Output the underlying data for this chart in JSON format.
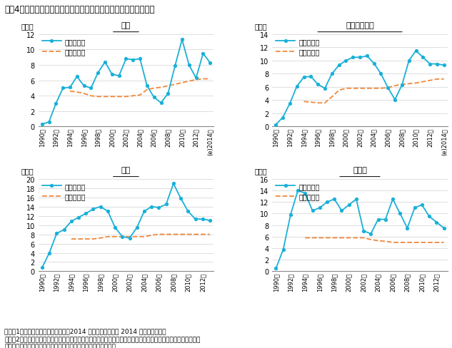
{
  "title": "図表4　大阪ビジネス地区におけるエリア別の空室率と自然空室率",
  "years_full": [
    1990,
    1991,
    1992,
    1993,
    1994,
    1995,
    1996,
    1997,
    1998,
    1999,
    2000,
    2001,
    2002,
    2003,
    2004,
    2005,
    2006,
    2007,
    2008,
    2009,
    2010,
    2011,
    2012,
    2013,
    2014
  ],
  "years_24": [
    1990,
    1991,
    1992,
    1993,
    1994,
    1995,
    1996,
    1997,
    1998,
    1999,
    2000,
    2001,
    2002,
    2003,
    2004,
    2005,
    2006,
    2007,
    2008,
    2009,
    2010,
    2011,
    2012,
    2013
  ],
  "x_label_years": [
    1990,
    1992,
    1994,
    1996,
    1998,
    2000,
    2002,
    2004,
    2006,
    2008,
    2010,
    2012,
    2014
  ],
  "x_labels_full": [
    "1990年",
    "1992年",
    "1994年",
    "1996年",
    "1998年",
    "2000年",
    "2002年",
    "2004年",
    "2006年",
    "2008年",
    "2010年",
    "2012年",
    "(e)2014年"
  ],
  "x_labels_24": [
    "1990年",
    "1992年",
    "1994年",
    "1996年",
    "1998年",
    "2000年",
    "2002年",
    "2004年",
    "2006年",
    "2008年",
    "2010年",
    "2012年"
  ],
  "umeda_avg": [
    0.3,
    0.6,
    3.0,
    5.0,
    5.1,
    6.5,
    5.3,
    5.0,
    7.0,
    8.4,
    6.8,
    6.6,
    8.8,
    8.7,
    8.8,
    5.3,
    3.8,
    3.1,
    4.3,
    7.9,
    11.3,
    8.0,
    6.3,
    9.5,
    8.3
  ],
  "umeda_nat": [
    null,
    null,
    null,
    null,
    4.6,
    4.5,
    4.3,
    4.0,
    3.9,
    3.9,
    3.9,
    3.9,
    3.9,
    4.0,
    4.1,
    4.8,
    5.0,
    5.1,
    5.3,
    5.5,
    5.7,
    5.9,
    6.1,
    6.2,
    6.2
  ],
  "yodoyabashi_avg": [
    0.3,
    1.4,
    3.5,
    6.1,
    7.5,
    7.6,
    6.4,
    5.8,
    8.0,
    9.3,
    10.0,
    10.5,
    10.5,
    10.7,
    9.6,
    8.0,
    5.9,
    4.1,
    6.3,
    10.0,
    11.5,
    10.5,
    9.5,
    9.5,
    9.3
  ],
  "yodoyabashi_nat": [
    null,
    null,
    null,
    null,
    3.8,
    3.7,
    3.6,
    3.6,
    4.5,
    5.5,
    5.8,
    5.8,
    5.8,
    5.8,
    5.8,
    5.8,
    5.9,
    6.2,
    6.4,
    6.5,
    6.6,
    6.8,
    7.0,
    7.2,
    7.2
  ],
  "semba_avg": [
    0.8,
    4.0,
    8.2,
    9.0,
    10.8,
    11.7,
    12.5,
    13.5,
    14.0,
    13.0,
    9.5,
    7.5,
    7.2,
    9.5,
    13.0,
    14.0,
    13.8,
    14.5,
    19.0,
    15.8,
    13.0,
    11.3,
    11.3,
    11.0
  ],
  "semba_nat": [
    null,
    null,
    null,
    null,
    7.0,
    7.0,
    7.0,
    7.0,
    7.2,
    7.5,
    7.5,
    7.5,
    7.5,
    7.5,
    7.5,
    7.8,
    8.0,
    8.0,
    8.0,
    8.0,
    8.0,
    8.0,
    8.0,
    8.0
  ],
  "shinsosaka_avg": [
    0.5,
    3.8,
    9.8,
    14.0,
    13.5,
    10.5,
    11.0,
    12.0,
    12.5,
    10.5,
    11.5,
    12.5,
    7.0,
    6.5,
    9.0,
    9.0,
    12.5,
    10.0,
    7.5,
    11.0,
    11.5,
    9.5,
    8.5,
    7.5
  ],
  "shinsosaka_nat": [
    null,
    null,
    null,
    null,
    5.8,
    5.8,
    5.8,
    5.8,
    5.8,
    5.8,
    5.8,
    5.8,
    5.8,
    5.5,
    5.3,
    5.2,
    5.0,
    5.0,
    5.0,
    5.0,
    5.0,
    5.0,
    5.0,
    5.0
  ],
  "color_avg": "#1ab0d8",
  "color_nat": "#f0883c",
  "legend_avg": "平均空室率",
  "legend_nat": "自然空室率",
  "panel_titles": [
    "梅田",
    "淀屋橋・本町",
    "船場",
    "新大阪"
  ],
  "ylabel": "（％）",
  "ylims": [
    12,
    14,
    20,
    16
  ],
  "yticks": [
    [
      0,
      2,
      4,
      6,
      8,
      10,
      12
    ],
    [
      0,
      2,
      4,
      6,
      8,
      10,
      12,
      14
    ],
    [
      0,
      2,
      4,
      6,
      8,
      10,
      12,
      14,
      16,
      18,
      20
    ],
    [
      0,
      2,
      4,
      6,
      8,
      10,
      12,
      14,
      16
    ]
  ],
  "note1": "注）　1．平均空室率は年次データ。2014 年の平均空室率は 2014 年７月の数値。",
  "note2": "　　　2．自然空室率は平均賃料が反転上昇／反転下落する境界となる平均空室率の水準で、当社による推計値。",
  "source": "出所）三鬼商事データをもとに三井住友トラスト基礎研究所作成"
}
